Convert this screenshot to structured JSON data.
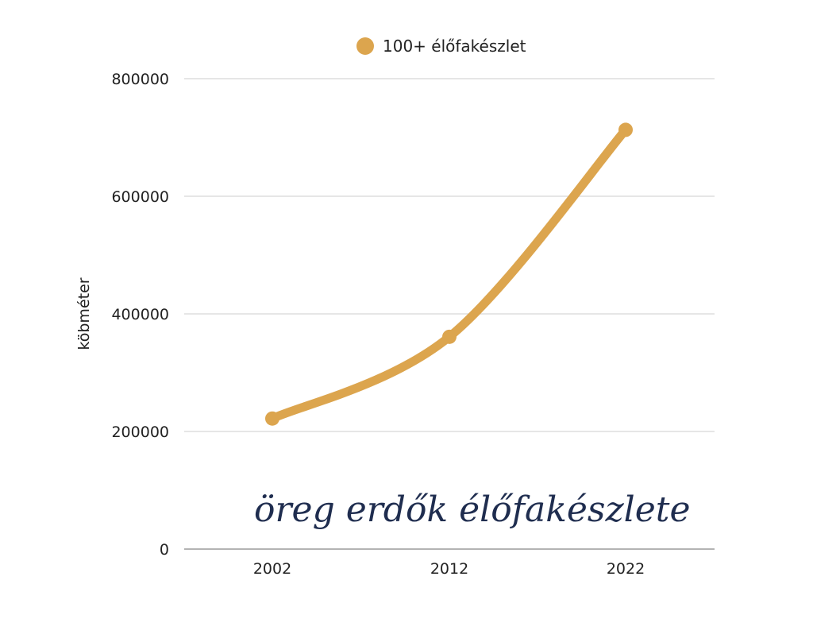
{
  "chart_data": {
    "type": "line",
    "title": "öreg erdők élőfakészlete",
    "xlabel": "",
    "ylabel": "köbméter",
    "categories": [
      "2002",
      "2012",
      "2022"
    ],
    "series": [
      {
        "name": "100+ élőfakészlet",
        "values": [
          222000,
          361000,
          713000
        ]
      }
    ],
    "ylim": [
      0,
      800000
    ],
    "yticks": [
      "0",
      "200000",
      "400000",
      "600000",
      "800000"
    ],
    "ytick_values": [
      0,
      200000,
      400000,
      600000,
      800000
    ],
    "grid": true,
    "legend_position": "top-center",
    "colors": {
      "series": "#dca54e",
      "title": "#1f2d4f",
      "grid": "#cccccc",
      "axis": "#888888",
      "text": "#222222"
    }
  }
}
